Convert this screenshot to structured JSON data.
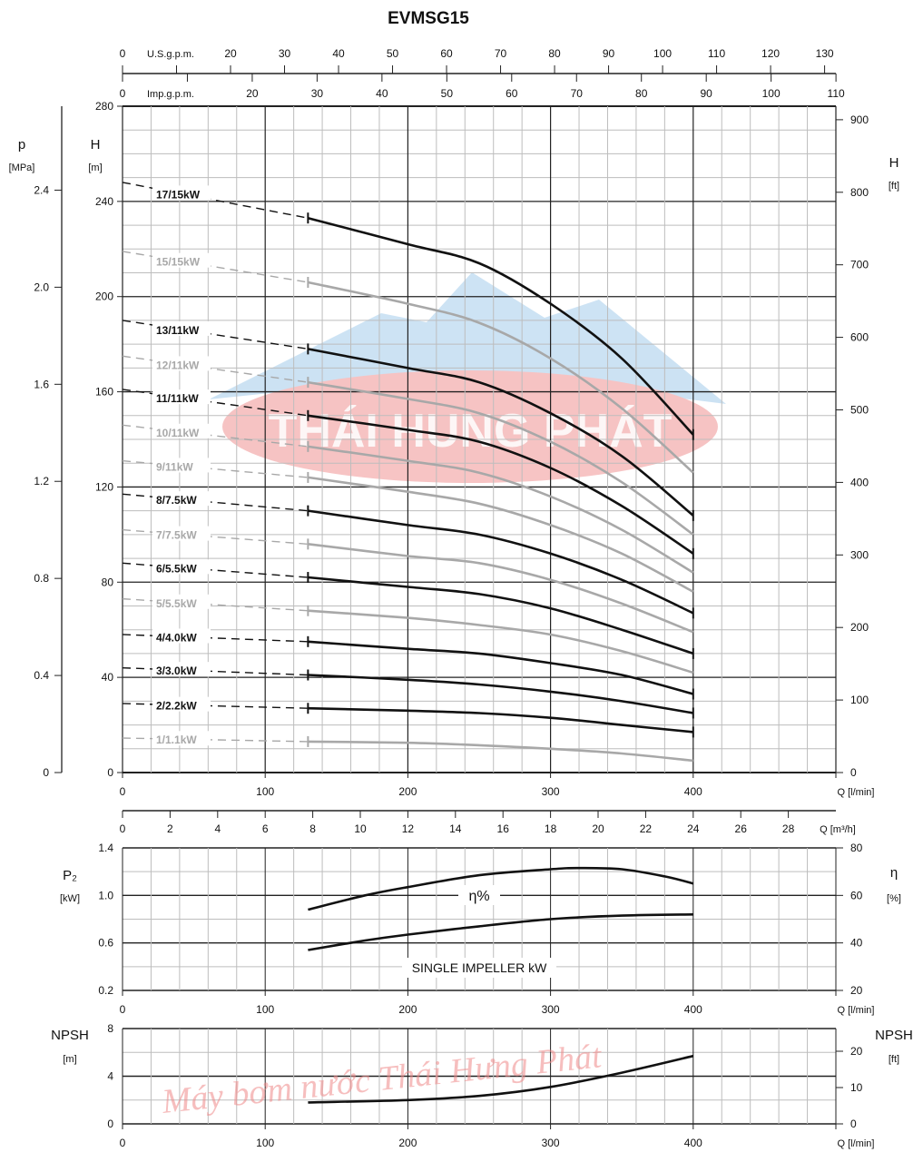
{
  "title": "EVMSG15",
  "watermark": {
    "logo_text": "THÁI HUNG PHÁT",
    "script_text": "Máy bơm nước Thái Hưng Phát"
  },
  "colors": {
    "curve_dark": "#111111",
    "curve_light": "#a8a8a8",
    "grid_major": "#222222",
    "grid_minor": "#bdbdbd",
    "logo_red": "#f2a0a0",
    "logo_blue": "#bcd9f0"
  },
  "chart_data": [
    {
      "type": "line",
      "title": "EVMSG15",
      "xlabel": "Q [l/min]",
      "ylabel": "H",
      "ylabel_unit": "[m]",
      "xlim": [
        0,
        500
      ],
      "ylim": [
        0,
        280
      ],
      "grid": true,
      "x_ticks": [
        0,
        100,
        200,
        300,
        400
      ],
      "y_ticks": [
        0,
        40,
        80,
        120,
        160,
        200,
        240,
        280
      ],
      "secondary_axes": {
        "pressure": {
          "label": "p",
          "unit": "[MPa]",
          "ticks": [
            0,
            0.4,
            0.8,
            1.2,
            1.6,
            2.0,
            2.4
          ],
          "tick_labels": [
            "0",
            "0.4",
            "0.8",
            "1.2",
            "1.6",
            "2.0",
            "2.4"
          ]
        },
        "head_ft": {
          "label": "H",
          "unit": "[ft]",
          "ticks": [
            0,
            100,
            200,
            300,
            400,
            500,
            600,
            700,
            800,
            900
          ]
        },
        "us_gpm": {
          "unit": "U.S.g.p.m.",
          "ticks": [
            0,
            10,
            20,
            30,
            40,
            50,
            60,
            70,
            80,
            90,
            100,
            110,
            120,
            130
          ],
          "tick_labels": [
            "0",
            "",
            "20",
            "30",
            "40",
            "50",
            "60",
            "70",
            "80",
            "90",
            "100",
            "110",
            "120",
            "130"
          ]
        },
        "imp_gpm": {
          "unit": "Imp.g.p.m.",
          "ticks": [
            0,
            10,
            20,
            30,
            40,
            50,
            60,
            70,
            80,
            90,
            100,
            110
          ],
          "tick_labels": [
            "0",
            "",
            "20",
            "30",
            "40",
            "50",
            "60",
            "70",
            "80",
            "90",
            "100",
            "110"
          ]
        }
      },
      "x": [
        0,
        130,
        200,
        250,
        300,
        350,
        400
      ],
      "series": [
        {
          "name": "17/15kW",
          "style": "dark",
          "values": [
            248,
            233,
            222,
            214,
            197,
            174,
            142
          ]
        },
        {
          "name": "15/15kW",
          "style": "light",
          "values": [
            219,
            206,
            197,
            189,
            174,
            153,
            126
          ]
        },
        {
          "name": "13/11kW",
          "style": "dark",
          "values": [
            190,
            178,
            170,
            164,
            151,
            133,
            108
          ]
        },
        {
          "name": "12/11kW",
          "style": "light",
          "values": [
            175,
            164,
            157,
            151,
            139,
            122,
            100
          ]
        },
        {
          "name": "11/11kW",
          "style": "dark",
          "values": [
            161,
            150,
            144,
            139,
            128,
            112,
            92
          ]
        },
        {
          "name": "10/11kW",
          "style": "light",
          "values": [
            146,
            137,
            131,
            126,
            116,
            102,
            84
          ]
        },
        {
          "name": "9/11kW",
          "style": "light",
          "values": [
            131,
            124,
            118,
            113,
            104,
            92,
            76
          ]
        },
        {
          "name": "8/7.5kW",
          "style": "dark",
          "values": [
            117,
            110,
            104,
            100,
            92,
            81,
            67
          ]
        },
        {
          "name": "7/7.5kW",
          "style": "light",
          "values": [
            102,
            96,
            91,
            88,
            81,
            71,
            59
          ]
        },
        {
          "name": "6/5.5kW",
          "style": "dark",
          "values": [
            88,
            82,
            78,
            75,
            69,
            60,
            50
          ]
        },
        {
          "name": "5/5.5kW",
          "style": "light",
          "values": [
            73,
            68,
            65,
            62,
            58,
            51,
            42
          ]
        },
        {
          "name": "4/4.0kW",
          "style": "dark",
          "values": [
            58,
            55,
            52,
            50,
            46,
            41,
            33
          ]
        },
        {
          "name": "3/3.0kW",
          "style": "dark",
          "values": [
            44,
            41,
            39,
            37,
            34,
            30,
            25
          ]
        },
        {
          "name": "2/2.2kW",
          "style": "dark",
          "values": [
            29,
            27,
            26,
            25,
            23,
            20,
            17
          ]
        },
        {
          "name": "1/1.1kW",
          "style": "light",
          "values": [
            14.5,
            13,
            12.5,
            11.5,
            10,
            8,
            5
          ]
        }
      ]
    },
    {
      "type": "line",
      "xlabel": "Q [l/min]",
      "xlabel_m3h": "Q [m³/h]",
      "m3h_ticks": [
        0,
        2,
        4,
        6,
        8,
        10,
        12,
        14,
        16,
        18,
        20,
        22,
        24,
        26,
        28
      ],
      "xlim": [
        0,
        500
      ],
      "x_ticks": [
        0,
        100,
        200,
        300,
        400
      ],
      "ylabel_left": "P₂",
      "ylabel_left_unit": "[kW]",
      "ylim_left": [
        0.2,
        1.4
      ],
      "y_ticks_left": [
        "0.2",
        "0.6",
        "1.0",
        "1.4"
      ],
      "ylabel_right": "η",
      "ylabel_right_unit": "[%]",
      "ylim_right": [
        20,
        80
      ],
      "y_ticks_right": [
        20,
        40,
        60,
        80
      ],
      "grid": true,
      "series": [
        {
          "name": "η%",
          "axis": "right",
          "x": [
            130,
            170,
            200,
            250,
            300,
            320,
            350,
            380,
            400
          ],
          "values": [
            54,
            60,
            63.5,
            68.5,
            71,
            71.5,
            71,
            68,
            65
          ]
        },
        {
          "name": "SINGLE IMPELLER kW",
          "axis": "left",
          "x": [
            130,
            170,
            200,
            250,
            300,
            350,
            400
          ],
          "values": [
            0.54,
            0.62,
            0.67,
            0.74,
            0.8,
            0.83,
            0.84
          ]
        }
      ]
    },
    {
      "type": "line",
      "xlabel": "Q [l/min]",
      "xlim": [
        0,
        500
      ],
      "x_ticks": [
        0,
        100,
        200,
        300,
        400
      ],
      "ylabel_left": "NPSH",
      "ylabel_left_unit": "[m]",
      "ylim_left": [
        0,
        8
      ],
      "y_ticks_left": [
        0,
        4,
        8
      ],
      "ylabel_right": "NPSH",
      "ylabel_right_unit": "[ft]",
      "y_ticks_right": [
        0,
        10,
        20
      ],
      "grid": true,
      "series": [
        {
          "name": "NPSH",
          "x": [
            130,
            200,
            250,
            300,
            350,
            400
          ],
          "values": [
            1.8,
            2.0,
            2.35,
            3.1,
            4.3,
            5.7
          ]
        }
      ]
    }
  ]
}
